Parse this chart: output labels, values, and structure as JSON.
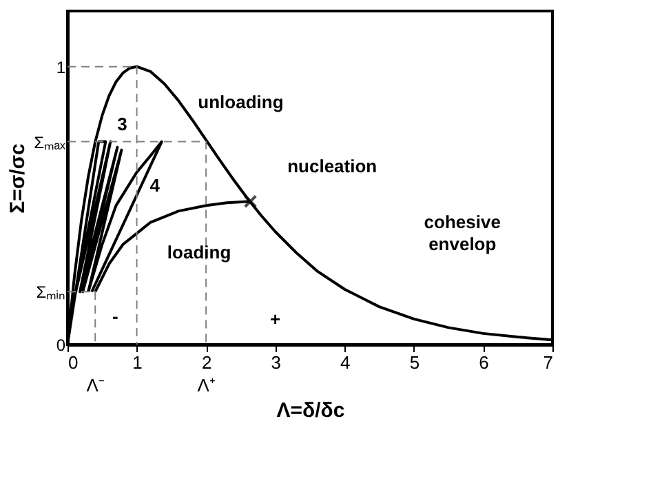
{
  "chart_data": {
    "type": "line",
    "xlabel": "Λ=δ/δc",
    "ylabel": "Σ=σ/σc",
    "xlim": [
      0,
      7
    ],
    "ylim": [
      0,
      1.2
    ],
    "xticks": [
      0,
      1,
      2,
      3,
      4,
      5,
      6,
      7
    ],
    "yticks": [
      0,
      {
        "value": 0.19,
        "label": "Σₘᵢₙ"
      },
      {
        "value": 0.73,
        "label": "Σₘₐₓ"
      },
      1
    ],
    "grid": false,
    "series": [
      {
        "color": "#000000",
        "line_style": "solid",
        "x": [
          0,
          0.1,
          0.2,
          0.3,
          0.4,
          0.5,
          0.6,
          0.7,
          0.8,
          0.9,
          1,
          1.2,
          1.4,
          1.6,
          1.8,
          2,
          2.2,
          2.4,
          2.6,
          2.8,
          3,
          3.3,
          3.6,
          4,
          4.5,
          5,
          5.5,
          6,
          6.5,
          7
        ],
        "values": [
          0,
          0.246,
          0.445,
          0.604,
          0.729,
          0.824,
          0.895,
          0.945,
          0.977,
          0.995,
          1,
          0.982,
          0.938,
          0.878,
          0.809,
          0.736,
          0.663,
          0.592,
          0.525,
          0.463,
          0.406,
          0.331,
          0.265,
          0.199,
          0.136,
          0.092,
          0.061,
          0.04,
          0.027,
          0.017
        ]
      },
      {
        "color": "#000000",
        "line_style": "solid",
        "x": [
          0.4,
          0.6,
          0.8,
          1.0,
          1.2,
          1.6,
          2.0,
          2.3,
          2.64
        ],
        "values": [
          0.19,
          0.29,
          0.36,
          0.4,
          0.44,
          0.48,
          0.5,
          0.51,
          0.515
        ]
      },
      {
        "color": "#000000",
        "line_style": "solid",
        "x": [
          0.3,
          0.5,
          0.7,
          1.0,
          1.2,
          1.36,
          0.35
        ],
        "values": [
          0.19,
          0.36,
          0.5,
          0.62,
          0.68,
          0.73,
          0.19
        ]
      },
      {
        "color": "#000000",
        "line_style": "solid",
        "x": [
          0,
          0.45,
          0.55,
          0.12,
          0.62,
          0.18,
          0.72,
          0.22,
          0.78,
          0.3
        ],
        "values": [
          0,
          0.73,
          0.73,
          0.19,
          0.73,
          0.19,
          0.71,
          0.19,
          0.7,
          0.19
        ]
      },
      {
        "color": "#808080",
        "line_style": "dashed",
        "x": [
          0,
          1,
          1
        ],
        "values": [
          1,
          1,
          0
        ]
      },
      {
        "color": "#808080",
        "line_style": "dashed",
        "x": [
          0,
          2,
          2
        ],
        "values": [
          0.73,
          0.73,
          0
        ]
      },
      {
        "color": "#808080",
        "line_style": "dashed",
        "x": [
          0,
          0.4,
          0.4
        ],
        "values": [
          0.19,
          0.19,
          0
        ]
      },
      {
        "type": "scatter",
        "color": "#000000",
        "marker": "cross",
        "x": [
          2.64
        ],
        "values": [
          0.515
        ]
      }
    ],
    "annotations": [
      "unloading",
      "3",
      "4",
      "nucleation",
      "loading",
      "cohesive\nenvelop",
      "-",
      "+",
      {
        "text": "Λ⁻",
        "x": 0.4,
        "y": 0
      },
      {
        "text": "Λ⁺",
        "x": 2,
        "y": 0
      }
    ]
  }
}
